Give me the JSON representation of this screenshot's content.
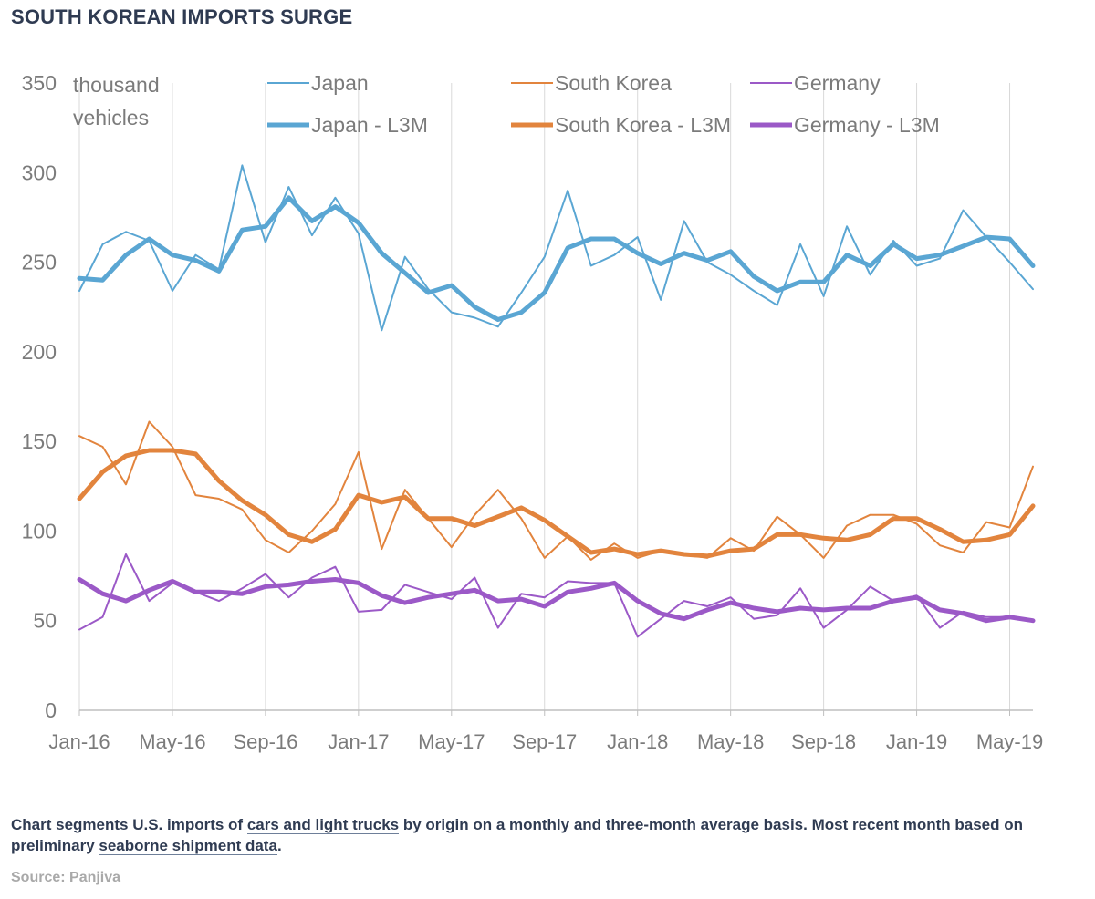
{
  "title": "SOUTH KOREAN IMPORTS SURGE",
  "caption": {
    "part1": "Chart segments U.S. imports of ",
    "link1": "cars and light trucks",
    "part2": " by origin on a monthly and three-month average basis. Most recent month based on preliminary ",
    "link2": "seaborne shipment data",
    "part3": "."
  },
  "source": "Source: Panjiva",
  "chart_data": {
    "type": "line",
    "title": "SOUTH KOREAN IMPORTS SURGE",
    "ylabel": "thousand vehicles",
    "xlabel": "",
    "ylim": [
      0,
      350
    ],
    "yticks": [
      0,
      50,
      100,
      150,
      200,
      250,
      300,
      350
    ],
    "grid": "vertical",
    "legend": "top",
    "x": [
      "Jan-16",
      "Feb-16",
      "Mar-16",
      "Apr-16",
      "May-16",
      "Jun-16",
      "Jul-16",
      "Aug-16",
      "Sep-16",
      "Oct-16",
      "Nov-16",
      "Dec-16",
      "Jan-17",
      "Feb-17",
      "Mar-17",
      "Apr-17",
      "May-17",
      "Jun-17",
      "Jul-17",
      "Aug-17",
      "Sep-17",
      "Oct-17",
      "Nov-17",
      "Dec-17",
      "Jan-18",
      "Feb-18",
      "Mar-18",
      "Apr-18",
      "May-18",
      "Jun-18",
      "Jul-18",
      "Aug-18",
      "Sep-18",
      "Oct-18",
      "Nov-18",
      "Dec-18",
      "Jan-19",
      "Feb-19",
      "Mar-19",
      "Apr-19",
      "May-19",
      "Jun-19"
    ],
    "xtick_labels": [
      "Jan-16",
      "May-16",
      "Sep-16",
      "Jan-17",
      "May-17",
      "Sep-17",
      "Jan-18",
      "May-18",
      "Sep-18",
      "Jan-19",
      "May-19"
    ],
    "series": [
      {
        "name": "Japan",
        "color": "#5aa6d3",
        "width": 2,
        "values": [
          234,
          260,
          267,
          262,
          234,
          254,
          246,
          304,
          261,
          292,
          265,
          286,
          266,
          212,
          253,
          235,
          222,
          219,
          214,
          233,
          253,
          290,
          248,
          254,
          264,
          229,
          273,
          250,
          243,
          234,
          226,
          260,
          231,
          270,
          243,
          262,
          248,
          252,
          279,
          264,
          250,
          235
        ]
      },
      {
        "name": "South Korea",
        "color": "#e2843d",
        "width": 2,
        "values": [
          153,
          147,
          126,
          161,
          147,
          120,
          118,
          112,
          95,
          88,
          100,
          115,
          144,
          90,
          123,
          107,
          91,
          109,
          123,
          107,
          85,
          97,
          84,
          93,
          85,
          89,
          87,
          85,
          96,
          89,
          108,
          98,
          85,
          103,
          109,
          109,
          104,
          92,
          88,
          105,
          102,
          136
        ]
      },
      {
        "name": "Germany",
        "color": "#9b59c7",
        "width": 2,
        "values": [
          45,
          52,
          87,
          61,
          71,
          66,
          61,
          68,
          76,
          63,
          74,
          80,
          55,
          56,
          70,
          66,
          62,
          74,
          46,
          65,
          63,
          72,
          71,
          71,
          41,
          51,
          61,
          58,
          63,
          51,
          53,
          68,
          46,
          56,
          69,
          61,
          64,
          46,
          55,
          52,
          52,
          50
        ]
      },
      {
        "name": "Japan - L3M",
        "color": "#5aa6d3",
        "width": 5,
        "values": [
          241,
          240,
          254,
          263,
          254,
          251,
          245,
          268,
          270,
          286,
          273,
          281,
          272,
          255,
          244,
          233,
          237,
          225,
          218,
          222,
          233,
          258,
          263,
          263,
          255,
          249,
          255,
          251,
          256,
          242,
          234,
          239,
          239,
          254,
          248,
          260,
          252,
          254,
          259,
          264,
          263,
          248
        ]
      },
      {
        "name": "South Korea - L3M",
        "color": "#e2843d",
        "width": 5,
        "values": [
          118,
          133,
          142,
          145,
          145,
          143,
          128,
          117,
          109,
          98,
          94,
          101,
          120,
          116,
          119,
          107,
          107,
          103,
          108,
          113,
          106,
          97,
          88,
          90,
          87,
          89,
          87,
          86,
          89,
          90,
          98,
          98,
          96,
          95,
          98,
          107,
          107,
          101,
          94,
          95,
          98,
          114
        ]
      },
      {
        "name": "Germany - L3M",
        "color": "#9b59c7",
        "width": 5,
        "values": [
          73,
          65,
          61,
          67,
          72,
          66,
          66,
          65,
          69,
          70,
          72,
          73,
          71,
          64,
          60,
          63,
          65,
          67,
          61,
          62,
          58,
          66,
          68,
          71,
          61,
          54,
          51,
          56,
          60,
          57,
          55,
          57,
          56,
          57,
          57,
          61,
          63,
          56,
          54,
          50,
          52,
          50
        ]
      }
    ]
  }
}
